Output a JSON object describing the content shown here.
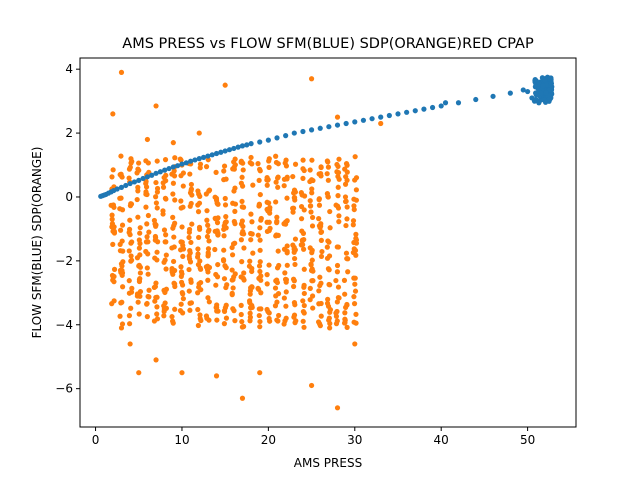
{
  "chart_data": {
    "type": "scatter",
    "title": "AMS PRESS vs FLOW SFM(BLUE) SDP(ORANGE)RED CPAP",
    "xlabel": "AMS PRESS",
    "ylabel": "FLOW SFM(BLUE) SDP(ORANGE)",
    "xlim": [
      -1.8,
      55.6
    ],
    "ylim": [
      -7.2,
      4.35
    ],
    "xticks": [
      0,
      10,
      20,
      30,
      40,
      50
    ],
    "yticks": [
      -6,
      -4,
      -2,
      0,
      2,
      4
    ],
    "grid": false,
    "colors": {
      "blue": "#1f77b4",
      "orange": "#ff7f0e"
    },
    "series": [
      {
        "color": "#1f77b4",
        "points": [
          [
            0.6,
            0.02
          ],
          [
            0.8,
            0.04
          ],
          [
            1.0,
            0.06
          ],
          [
            1.2,
            0.08
          ],
          [
            1.5,
            0.12
          ],
          [
            1.8,
            0.16
          ],
          [
            2.1,
            0.2
          ],
          [
            2.5,
            0.25
          ],
          [
            3.0,
            0.3
          ],
          [
            3.5,
            0.36
          ],
          [
            4.0,
            0.42
          ],
          [
            4.5,
            0.47
          ],
          [
            5.0,
            0.52
          ],
          [
            5.5,
            0.58
          ],
          [
            6.0,
            0.63
          ],
          [
            6.5,
            0.68
          ],
          [
            7.0,
            0.74
          ],
          [
            7.5,
            0.79
          ],
          [
            8.0,
            0.84
          ],
          [
            8.5,
            0.89
          ],
          [
            9.0,
            0.94
          ],
          [
            9.5,
            0.98
          ],
          [
            10.0,
            1.03
          ],
          [
            10.5,
            1.07
          ],
          [
            11.0,
            1.12
          ],
          [
            11.5,
            1.16
          ],
          [
            12.0,
            1.2
          ],
          [
            12.5,
            1.24
          ],
          [
            13.0,
            1.28
          ],
          [
            13.5,
            1.32
          ],
          [
            14.0,
            1.36
          ],
          [
            14.5,
            1.4
          ],
          [
            15.0,
            1.44
          ],
          [
            15.5,
            1.48
          ],
          [
            16.0,
            1.52
          ],
          [
            16.5,
            1.56
          ],
          [
            17.0,
            1.6
          ],
          [
            17.5,
            1.63
          ],
          [
            18.0,
            1.67
          ],
          [
            19.0,
            1.72
          ],
          [
            20.0,
            1.78
          ],
          [
            21.0,
            1.85
          ],
          [
            22.0,
            1.92
          ],
          [
            23.0,
            2.0
          ],
          [
            24.0,
            2.05
          ],
          [
            25.0,
            2.1
          ],
          [
            26.0,
            2.15
          ],
          [
            27.0,
            2.2
          ],
          [
            28.0,
            2.25
          ],
          [
            29.0,
            2.3
          ],
          [
            30.0,
            2.35
          ],
          [
            31.0,
            2.4
          ],
          [
            32.0,
            2.45
          ],
          [
            33.0,
            2.5
          ],
          [
            34.0,
            2.55
          ],
          [
            35.0,
            2.6
          ],
          [
            36.0,
            2.65
          ],
          [
            37.0,
            2.7
          ],
          [
            38.0,
            2.75
          ],
          [
            39.0,
            2.8
          ],
          [
            40.0,
            2.85
          ],
          [
            40.5,
            2.95
          ],
          [
            42.0,
            2.95
          ],
          [
            44.0,
            3.05
          ],
          [
            46.0,
            3.15
          ],
          [
            48.0,
            3.25
          ],
          [
            49.5,
            3.35
          ],
          [
            50.0,
            3.3
          ],
          [
            50.5,
            3.1
          ],
          [
            50.8,
            3.0
          ],
          [
            51.0,
            3.2
          ],
          [
            51.2,
            3.4
          ],
          [
            51.5,
            3.6
          ],
          [
            51.7,
            3.3
          ],
          [
            51.9,
            3.5
          ],
          [
            52.0,
            3.7
          ],
          [
            52.2,
            3.4
          ],
          [
            52.4,
            3.55
          ],
          [
            52.6,
            3.65
          ],
          [
            52.8,
            3.45
          ],
          [
            51.3,
            2.95
          ],
          [
            51.6,
            3.05
          ],
          [
            51.8,
            3.25
          ],
          [
            52.1,
            3.15
          ],
          [
            52.3,
            3.75
          ],
          [
            52.5,
            3.35
          ],
          [
            50.9,
            3.45
          ],
          [
            51.4,
            3.55
          ]
        ]
      },
      {
        "color": "#ff7f0e",
        "points": [
          [
            3.0,
            3.9
          ],
          [
            2.0,
            2.6
          ],
          [
            7.0,
            2.85
          ],
          [
            15.0,
            3.5
          ],
          [
            25.0,
            3.7
          ],
          [
            33.0,
            2.3
          ],
          [
            28.0,
            2.5
          ],
          [
            12.0,
            2.0
          ],
          [
            9.0,
            1.7
          ],
          [
            6.0,
            1.8
          ],
          [
            17.0,
            -6.3
          ],
          [
            28.0,
            -6.6
          ],
          [
            25.0,
            -5.9
          ],
          [
            14.0,
            -5.6
          ],
          [
            10.0,
            -5.5
          ],
          [
            5.0,
            -5.5
          ],
          [
            19.0,
            -5.5
          ],
          [
            7.0,
            -5.1
          ],
          [
            30.0,
            -4.6
          ],
          [
            3.0,
            -4.1
          ],
          [
            4.0,
            -4.6
          ]
        ]
      }
    ]
  }
}
